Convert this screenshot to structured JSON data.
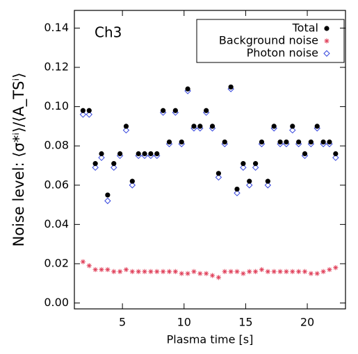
{
  "chart_data": {
    "type": "scatter",
    "annotation": "Ch3",
    "x_label": "Plasma time [s]",
    "y_label": "Noise level: ⟨σ*ⁱ⟩/⟨A_TSⁱ⟩",
    "x": [
      1.8,
      2.3,
      2.8,
      3.3,
      3.8,
      4.3,
      4.8,
      5.3,
      5.8,
      6.3,
      6.8,
      7.3,
      7.8,
      8.3,
      8.8,
      9.3,
      9.8,
      10.3,
      10.8,
      11.3,
      11.8,
      12.3,
      12.8,
      13.3,
      13.8,
      14.3,
      14.8,
      15.3,
      15.8,
      16.3,
      16.8,
      17.3,
      17.8,
      18.3,
      18.8,
      19.3,
      19.8,
      20.3,
      20.8,
      21.3,
      21.8,
      22.3
    ],
    "series": [
      {
        "name": "Total",
        "color": "#000000",
        "marker": "circle",
        "values": [
          0.098,
          0.098,
          0.071,
          0.076,
          0.055,
          0.071,
          0.076,
          0.09,
          0.062,
          0.076,
          0.076,
          0.076,
          0.076,
          0.098,
          0.082,
          0.098,
          0.082,
          0.109,
          0.09,
          0.09,
          0.098,
          0.09,
          0.066,
          0.082,
          0.11,
          0.058,
          0.071,
          0.062,
          0.071,
          0.082,
          0.062,
          0.09,
          0.082,
          0.082,
          0.09,
          0.082,
          0.076,
          0.082,
          0.09,
          0.082,
          0.082,
          0.076
        ]
      },
      {
        "name": "Background noise",
        "color": "#e0405a",
        "marker": "asterisk",
        "values": [
          0.021,
          0.019,
          0.017,
          0.017,
          0.017,
          0.016,
          0.016,
          0.017,
          0.016,
          0.016,
          0.016,
          0.016,
          0.016,
          0.016,
          0.016,
          0.016,
          0.015,
          0.015,
          0.016,
          0.015,
          0.015,
          0.014,
          0.013,
          0.016,
          0.016,
          0.016,
          0.015,
          0.016,
          0.016,
          0.017,
          0.016,
          0.016,
          0.016,
          0.016,
          0.016,
          0.016,
          0.016,
          0.015,
          0.015,
          0.016,
          0.017,
          0.018
        ]
      },
      {
        "name": "Photon noise",
        "color": "#3344dd",
        "marker": "diamond",
        "values": [
          0.096,
          0.096,
          0.069,
          0.074,
          0.052,
          0.069,
          0.075,
          0.088,
          0.06,
          0.075,
          0.075,
          0.075,
          0.075,
          0.097,
          0.081,
          0.097,
          0.081,
          0.108,
          0.089,
          0.089,
          0.097,
          0.089,
          0.064,
          0.081,
          0.109,
          0.056,
          0.069,
          0.06,
          0.069,
          0.081,
          0.06,
          0.089,
          0.081,
          0.081,
          0.088,
          0.081,
          0.075,
          0.081,
          0.089,
          0.081,
          0.081,
          0.074
        ]
      }
    ],
    "xlim": [
      1.1,
      23.1
    ],
    "ylim": [
      -0.003,
      0.149
    ],
    "xticks": [
      5,
      10,
      15,
      20
    ],
    "yticks": [
      {
        "value": 0,
        "label": "0.00"
      },
      0.02,
      0.04,
      0.06,
      0.08,
      {
        "value": 0.1,
        "label": "0.10"
      },
      0.12,
      0.14
    ],
    "legend": "upper right"
  }
}
